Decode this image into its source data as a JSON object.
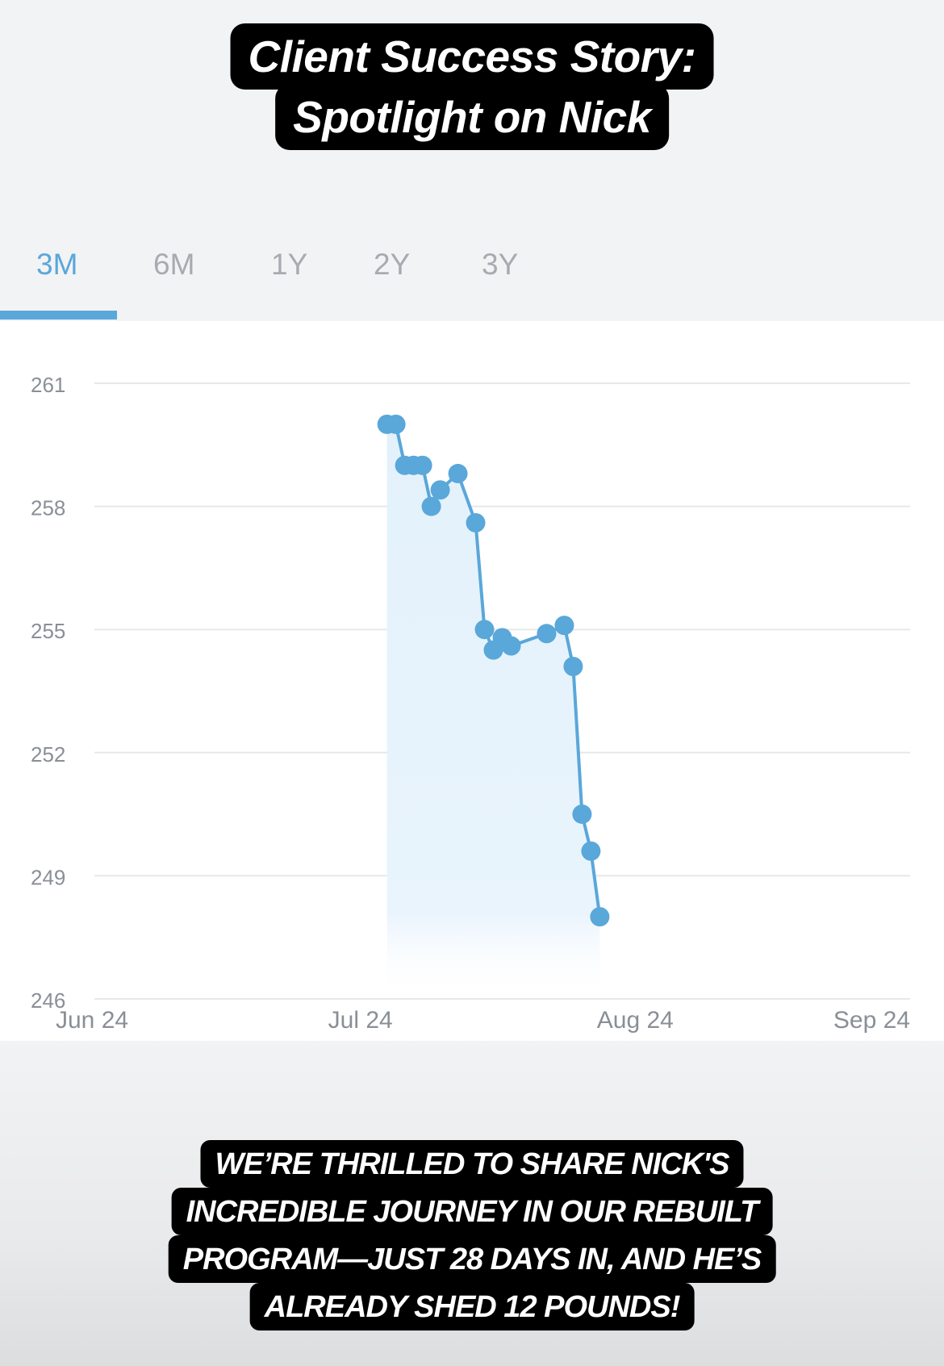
{
  "title": {
    "lines": [
      "Client Success Story:",
      "Spotlight on Nick"
    ]
  },
  "tabs": [
    {
      "label": "3M",
      "active": true
    },
    {
      "label": "6M",
      "active": false
    },
    {
      "label": "1Y",
      "active": false
    },
    {
      "label": "2Y",
      "active": false
    },
    {
      "label": "3Y",
      "active": false
    }
  ],
  "caption": {
    "lines": [
      "WE’RE THRILLED TO SHARE NICK'S",
      "INCREDIBLE JOURNEY IN OUR REBUILT",
      "PROGRAM—JUST 28 DAYS IN, AND HE’S",
      "ALREADY SHED 12 POUNDS!"
    ]
  },
  "colors": {
    "accent": "#5aa7da",
    "line": "#5aa7da",
    "fill": "#e3f1fb",
    "grid": "#e6e8ea",
    "tick_text": "#8a8f96",
    "inactive_tab": "#a7abb1"
  },
  "chart_data": {
    "type": "line",
    "title": "",
    "xlabel": "",
    "ylabel": "",
    "x_ticks": [
      "Jun 24",
      "Jul 24",
      "Aug 24",
      "Sep 24"
    ],
    "y_ticks": [
      "246",
      "249",
      "252",
      "255",
      "258",
      "261"
    ],
    "xlim": [
      "2024-06-24",
      "2024-09-24"
    ],
    "ylim": [
      246,
      261
    ],
    "grid": true,
    "area_fill": true,
    "series": [
      {
        "name": "",
        "points": [
          {
            "x": "2024-07-27",
            "y": 260.0
          },
          {
            "x": "2024-07-28",
            "y": 260.0
          },
          {
            "x": "2024-07-29",
            "y": 259.0
          },
          {
            "x": "2024-07-30",
            "y": 259.0
          },
          {
            "x": "2024-07-31",
            "y": 259.0
          },
          {
            "x": "2024-08-01",
            "y": 258.0
          },
          {
            "x": "2024-08-02",
            "y": 258.4
          },
          {
            "x": "2024-08-04",
            "y": 258.8
          },
          {
            "x": "2024-08-06",
            "y": 257.6
          },
          {
            "x": "2024-08-07",
            "y": 255.0
          },
          {
            "x": "2024-08-08",
            "y": 254.5
          },
          {
            "x": "2024-08-09",
            "y": 254.8
          },
          {
            "x": "2024-08-10",
            "y": 254.6
          },
          {
            "x": "2024-08-14",
            "y": 254.9
          },
          {
            "x": "2024-08-16",
            "y": 255.1
          },
          {
            "x": "2024-08-17",
            "y": 254.1
          },
          {
            "x": "2024-08-18",
            "y": 250.5
          },
          {
            "x": "2024-08-19",
            "y": 249.6
          },
          {
            "x": "2024-08-20",
            "y": 248.0
          }
        ]
      }
    ]
  }
}
